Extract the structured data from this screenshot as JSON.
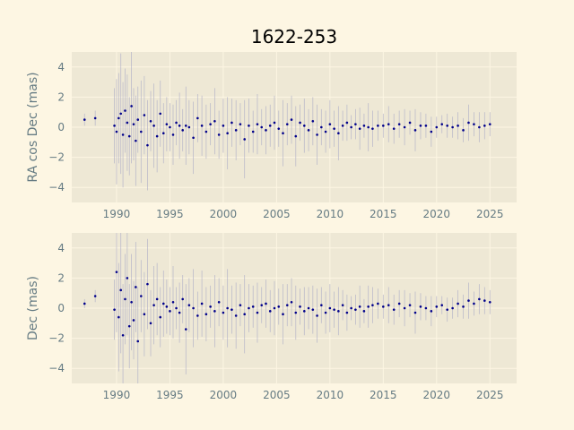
{
  "chart_data": {
    "type": "scatter",
    "title": "1622-253",
    "colors": {
      "background": "#fdf6e3",
      "axes_face": "#eee8d5",
      "grid": "#fdf6e3",
      "points": "#00008b",
      "errorbars": "#b0b0c8",
      "ticks": "#657b83"
    },
    "panels": [
      {
        "ylabel": "RA cos Dec (mas)",
        "xlim": [
          1985.8,
          2027.5
        ],
        "ylim": [
          -5,
          5
        ],
        "xticks": [
          1990,
          1995,
          2000,
          2005,
          2010,
          2015,
          2020,
          2025
        ],
        "yticks": [
          -4,
          -2,
          0,
          2,
          4
        ],
        "grid": true,
        "series": [
          {
            "epochs": [
              1987.0,
              1988.0,
              1989.8,
              1990.0,
              1990.2,
              1990.4,
              1990.6,
              1990.8,
              1991.0,
              1991.2,
              1991.4,
              1991.6,
              1991.8,
              1992.0,
              1992.3,
              1992.6,
              1992.9,
              1993.2,
              1993.5,
              1993.8,
              1994.1,
              1994.4,
              1994.7,
              1995.0,
              1995.3,
              1995.6,
              1995.9,
              1996.2,
              1996.5,
              1996.8,
              1997.2,
              1997.6,
              1998.0,
              1998.4,
              1998.8,
              1999.2,
              1999.6,
              2000.0,
              2000.4,
              2000.8,
              2001.2,
              2001.6,
              2002.0,
              2002.4,
              2002.8,
              2003.2,
              2003.6,
              2004.0,
              2004.4,
              2004.8,
              2005.2,
              2005.6,
              2006.0,
              2006.4,
              2006.8,
              2007.2,
              2007.6,
              2008.0,
              2008.4,
              2008.8,
              2009.2,
              2009.6,
              2010.0,
              2010.4,
              2010.8,
              2011.2,
              2011.6,
              2012.0,
              2012.4,
              2012.8,
              2013.2,
              2013.6,
              2014.0,
              2014.5,
              2015.0,
              2015.5,
              2016.0,
              2016.5,
              2017.0,
              2017.5,
              2018.0,
              2018.5,
              2019.0,
              2019.5,
              2020.0,
              2020.5,
              2021.0,
              2021.5,
              2022.0,
              2022.5,
              2023.0,
              2023.5,
              2024.0,
              2024.5,
              2025.0
            ],
            "values": [
              0.5,
              0.6,
              0.1,
              -0.3,
              0.6,
              0.9,
              -0.5,
              1.1,
              0.3,
              -0.6,
              1.4,
              0.2,
              -0.9,
              0.5,
              -0.3,
              0.8,
              -1.2,
              0.4,
              0.1,
              -0.6,
              0.9,
              -0.4,
              0.2,
              0.0,
              -0.5,
              0.3,
              0.1,
              -0.2,
              0.1,
              0.0,
              -0.7,
              0.6,
              0.1,
              -0.3,
              0.2,
              0.4,
              -0.5,
              0.1,
              -0.4,
              0.3,
              -0.2,
              0.2,
              -0.8,
              0.1,
              -0.3,
              0.2,
              0.0,
              -0.2,
              0.1,
              0.3,
              -0.1,
              -0.4,
              0.2,
              0.5,
              -0.6,
              0.3,
              0.1,
              -0.2,
              0.4,
              -0.5,
              0.0,
              -0.3,
              0.2,
              -0.1,
              -0.4,
              0.1,
              0.3,
              0.0,
              0.2,
              -0.1,
              0.1,
              0.0,
              -0.1,
              0.1,
              0.1,
              0.2,
              -0.1,
              0.2,
              0.0,
              0.3,
              -0.2,
              0.1,
              0.1,
              -0.3,
              0.0,
              0.2,
              0.1,
              0.0,
              0.1,
              -0.2,
              0.3,
              0.2,
              0.0,
              0.1,
              0.2
            ],
            "errors": [
              0.4,
              0.5,
              2.5,
              3.5,
              3.0,
              4.0,
              3.5,
              2.8,
              3.2,
              2.6,
              3.8,
              2.4,
              3.0,
              2.2,
              3.4,
              2.6,
              3.0,
              2.0,
              2.8,
              2.4,
              2.2,
              2.0,
              1.8,
              1.6,
              2.0,
              1.5,
              2.2,
              1.4,
              2.6,
              1.8,
              2.4,
              1.6,
              2.0,
              1.8,
              1.4,
              2.2,
              1.6,
              1.8,
              2.4,
              1.6,
              2.0,
              1.4,
              2.6,
              1.8,
              1.4,
              2.0,
              1.2,
              1.6,
              1.4,
              1.8,
              1.2,
              2.2,
              1.4,
              1.6,
              2.0,
              1.2,
              1.8,
              1.4,
              1.6,
              2.0,
              1.2,
              1.4,
              1.6,
              1.2,
              1.8,
              1.0,
              1.2,
              0.8,
              1.0,
              1.4,
              0.8,
              1.6,
              1.2,
              1.0,
              0.8,
              1.2,
              1.0,
              0.9,
              1.2,
              0.8,
              1.4,
              0.9,
              0.8,
              1.0,
              0.7,
              0.6,
              0.8,
              0.7,
              0.9,
              0.8,
              1.2,
              0.8,
              1.0,
              0.9,
              0.8
            ]
          }
        ]
      },
      {
        "ylabel": "Dec (mas)",
        "xlim": [
          1985.8,
          2027.5
        ],
        "ylim": [
          -5,
          5
        ],
        "xticks": [
          1990,
          1995,
          2000,
          2005,
          2010,
          2015,
          2020,
          2025
        ],
        "yticks": [
          -4,
          -2,
          0,
          2,
          4
        ],
        "grid": true,
        "series": [
          {
            "epochs": [
              1987.0,
              1988.0,
              1989.8,
              1990.0,
              1990.2,
              1990.4,
              1990.6,
              1990.8,
              1991.0,
              1991.2,
              1991.4,
              1991.6,
              1991.8,
              1992.0,
              1992.3,
              1992.6,
              1992.9,
              1993.2,
              1993.5,
              1993.8,
              1994.1,
              1994.4,
              1994.7,
              1995.0,
              1995.3,
              1995.6,
              1995.9,
              1996.2,
              1996.5,
              1996.8,
              1997.2,
              1997.6,
              1998.0,
              1998.4,
              1998.8,
              1999.2,
              1999.6,
              2000.0,
              2000.4,
              2000.8,
              2001.2,
              2001.6,
              2002.0,
              2002.4,
              2002.8,
              2003.2,
              2003.6,
              2004.0,
              2004.4,
              2004.8,
              2005.2,
              2005.6,
              2006.0,
              2006.4,
              2006.8,
              2007.2,
              2007.6,
              2008.0,
              2008.4,
              2008.8,
              2009.2,
              2009.6,
              2010.0,
              2010.4,
              2010.8,
              2011.2,
              2011.6,
              2012.0,
              2012.4,
              2012.8,
              2013.2,
              2013.6,
              2014.0,
              2014.5,
              2015.0,
              2015.5,
              2016.0,
              2016.5,
              2017.0,
              2017.5,
              2018.0,
              2018.5,
              2019.0,
              2019.5,
              2020.0,
              2020.5,
              2021.0,
              2021.5,
              2022.0,
              2022.5,
              2023.0,
              2023.5,
              2024.0,
              2024.5,
              2025.0
            ],
            "values": [
              0.3,
              0.8,
              -0.1,
              2.4,
              -0.6,
              1.2,
              -1.8,
              0.6,
              2.0,
              -1.2,
              0.4,
              -0.8,
              1.4,
              -2.2,
              0.8,
              -0.4,
              1.6,
              -1.0,
              0.2,
              0.6,
              -0.6,
              0.3,
              0.1,
              -0.2,
              0.4,
              0.0,
              -0.3,
              0.6,
              -1.4,
              0.2,
              0.0,
              -0.5,
              0.3,
              -0.4,
              0.1,
              -0.2,
              0.4,
              -0.3,
              0.0,
              -0.1,
              -0.5,
              0.2,
              -0.4,
              0.0,
              0.1,
              -0.3,
              0.2,
              0.3,
              -0.2,
              0.0,
              0.1,
              -0.4,
              0.2,
              0.4,
              -0.3,
              0.1,
              -0.2,
              0.0,
              -0.1,
              -0.5,
              0.2,
              -0.3,
              0.0,
              -0.1,
              -0.2,
              0.2,
              -0.3,
              0.0,
              -0.1,
              0.1,
              -0.2,
              0.1,
              0.2,
              0.3,
              0.1,
              0.2,
              -0.1,
              0.3,
              0.0,
              0.2,
              -0.3,
              0.1,
              0.0,
              -0.2,
              0.1,
              0.2,
              -0.1,
              0.0,
              0.3,
              0.1,
              0.5,
              0.3,
              0.6,
              0.5,
              0.4
            ],
            "errors": [
              0.3,
              0.4,
              2.0,
              4.0,
              3.6,
              4.2,
              3.4,
              3.0,
              3.8,
              2.8,
              3.2,
              2.6,
              3.0,
              3.6,
              2.4,
              2.8,
              3.0,
              2.2,
              2.6,
              2.4,
              2.0,
              2.2,
              1.8,
              1.6,
              2.4,
              1.4,
              2.0,
              1.6,
              3.0,
              1.8,
              2.6,
              1.6,
              2.2,
              1.8,
              1.4,
              2.4,
              1.6,
              1.8,
              2.6,
              1.6,
              2.2,
              1.4,
              2.6,
              1.6,
              1.4,
              2.0,
              1.2,
              1.6,
              1.4,
              1.8,
              1.2,
              2.0,
              1.4,
              1.6,
              1.8,
              1.2,
              1.6,
              1.4,
              1.6,
              1.8,
              1.2,
              1.4,
              1.6,
              1.2,
              1.6,
              1.0,
              1.2,
              0.8,
              1.0,
              1.4,
              0.8,
              1.4,
              1.2,
              1.0,
              0.8,
              1.2,
              1.0,
              0.9,
              1.2,
              0.8,
              1.4,
              0.9,
              0.8,
              1.0,
              0.7,
              0.6,
              0.8,
              0.7,
              0.9,
              0.8,
              1.2,
              0.8,
              1.0,
              0.9,
              0.8
            ]
          }
        ]
      }
    ]
  }
}
